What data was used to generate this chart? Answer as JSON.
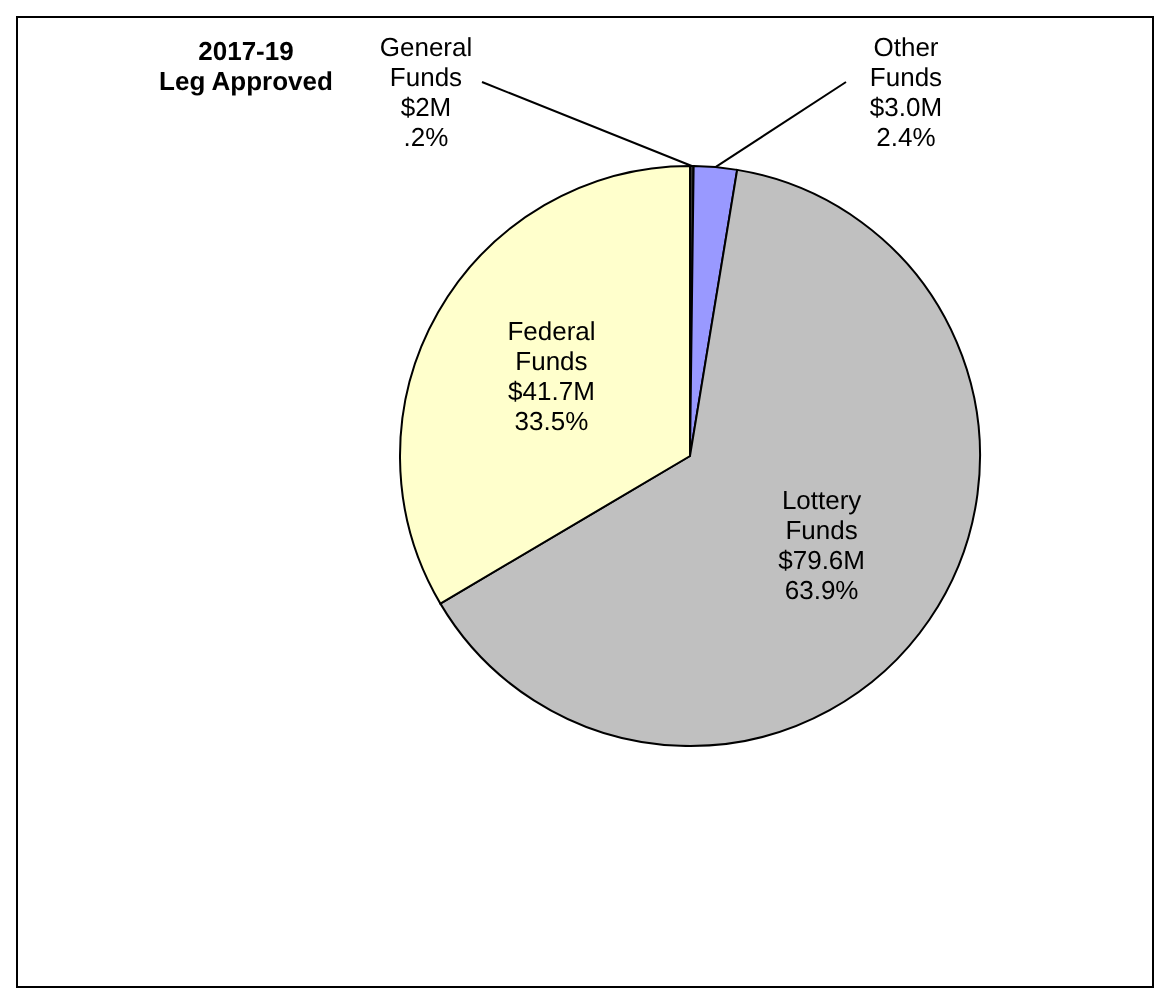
{
  "chart_data": {
    "type": "pie",
    "title": "2017-19 Leg Approved",
    "categories": [
      "General Funds",
      "Other Funds",
      "Lottery Funds",
      "Federal Funds"
    ],
    "values": [
      0.2,
      2.4,
      63.9,
      33.5
    ],
    "value_labels": [
      "$2M .2%",
      "$3.0M 2.4%",
      "$79.6M 63.9%",
      "$41.7M 33.5%"
    ],
    "colors": [
      "#333333",
      "#9999ff",
      "#c0c0c0",
      "#ffffcc"
    ]
  }
}
